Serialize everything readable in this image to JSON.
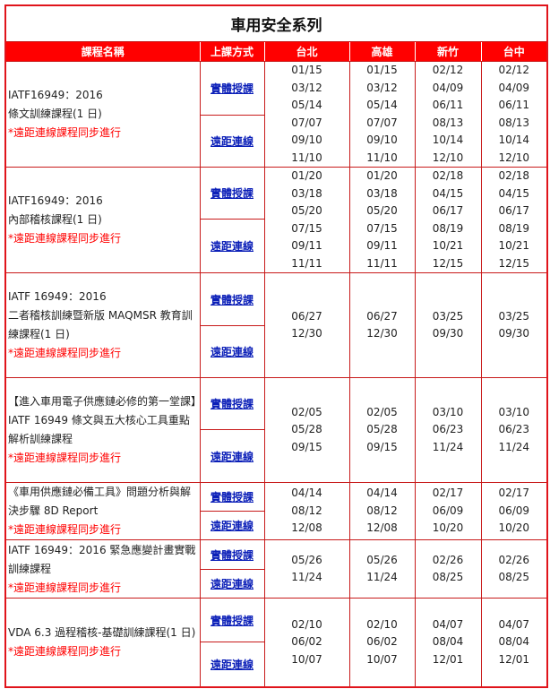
{
  "title": "車用安全系列",
  "headers": [
    "課程名稱",
    "上課方式",
    "台北",
    "高雄",
    "新竹",
    "台中"
  ],
  "methods": [
    "實體授課",
    "遠距連線"
  ],
  "note": "*遠距連線課程同步進行",
  "courses": [
    {
      "lines": [
        "IATF16949：2016",
        "條文訓練課程(1 日)"
      ],
      "dates": [
        [
          "01/15",
          "03/12",
          "05/14",
          "07/07",
          "09/10",
          "11/10"
        ],
        [
          "01/15",
          "03/12",
          "05/14",
          "07/07",
          "09/10",
          "11/10"
        ],
        [
          "02/12",
          "04/09",
          "06/11",
          "08/13",
          "10/14",
          "12/10"
        ],
        [
          "02/12",
          "04/09",
          "06/11",
          "08/13",
          "10/14",
          "12/10"
        ]
      ]
    },
    {
      "lines": [
        "IATF16949：2016",
        "內部稽核課程(1 日)"
      ],
      "dates": [
        [
          "01/20",
          "03/18",
          "05/20",
          "07/15",
          "09/11",
          "11/11"
        ],
        [
          "01/20",
          "03/18",
          "05/20",
          "07/15",
          "09/11",
          "11/11"
        ],
        [
          "02/18",
          "04/15",
          "06/17",
          "08/19",
          "10/21",
          "12/15"
        ],
        [
          "02/18",
          "04/15",
          "06/17",
          "08/19",
          "10/21",
          "12/15"
        ]
      ]
    },
    {
      "lines": [
        "IATF 16949：2016",
        "二者稽核訓練暨新版 MAQMSR 教育訓練課程(1 日)"
      ],
      "dates": [
        [
          "06/27",
          "12/30"
        ],
        [
          "06/27",
          "12/30"
        ],
        [
          "03/25",
          "09/30"
        ],
        [
          "03/25",
          "09/30"
        ]
      ]
    },
    {
      "lines": [
        "【進入車用電子供應鏈必修的第一堂課】",
        "IATF 16949 條文與五大核心工具重點解析訓練課程"
      ],
      "dates": [
        [
          "02/05",
          "05/28",
          "09/15"
        ],
        [
          "02/05",
          "05/28",
          "09/15"
        ],
        [
          "03/10",
          "06/23",
          "11/24"
        ],
        [
          "03/10",
          "06/23",
          "11/24"
        ]
      ]
    },
    {
      "lines": [
        "《車用供應鏈必備工具》問題分析與解決步驟 8D Report"
      ],
      "dates": [
        [
          "04/14",
          "08/12",
          "12/08"
        ],
        [
          "04/14",
          "08/12",
          "12/08"
        ],
        [
          "02/17",
          "06/09",
          "10/20"
        ],
        [
          "02/17",
          "06/09",
          "10/20"
        ]
      ]
    },
    {
      "lines": [
        "IATF 16949：2016 緊急應變計畫實戰訓練課程"
      ],
      "dates": [
        [
          "05/26",
          "11/24"
        ],
        [
          "05/26",
          "11/24"
        ],
        [
          "02/26",
          "08/25"
        ],
        [
          "02/26",
          "08/25"
        ]
      ]
    },
    {
      "lines": [
        "VDA 6.3 過程稽核-基礎訓練課程(1 日)"
      ],
      "dates": [
        [
          "02/10",
          "06/02",
          "10/07"
        ],
        [
          "02/10",
          "06/02",
          "10/07"
        ],
        [
          "04/07",
          "08/04",
          "12/01"
        ],
        [
          "04/07",
          "08/04",
          "12/01"
        ]
      ]
    }
  ]
}
